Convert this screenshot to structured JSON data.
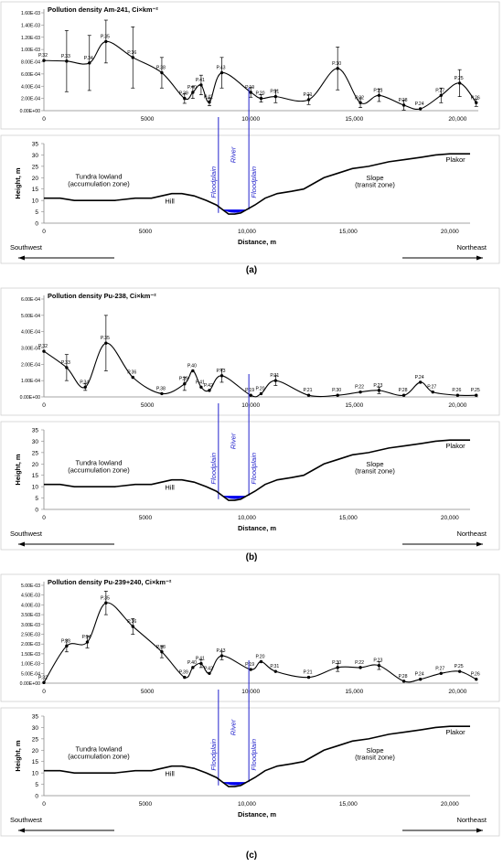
{
  "panels": [
    {
      "label": "(a)",
      "chart_data": {
        "type": "line",
        "title": "Pollution density Am-241, Ci×km⁻²",
        "xlabel": "",
        "ylabel": "",
        "xlim": [
          0,
          21000
        ],
        "ylim": [
          0,
          0.0016
        ],
        "yticks": [
          "0.00E+00",
          "2.00E-04",
          "4.00E-04",
          "6.00E-04",
          "8.00E-04",
          "1.00E-03",
          "1.20E-03",
          "1.40E-03",
          "1.60E-03"
        ],
        "xticks": [
          "0",
          "5000",
          "10,000",
          "15,000",
          "20,000"
        ],
        "series": [
          {
            "points": [
              {
                "label": "P.32",
                "x": 0,
                "y": 0.00082
              },
              {
                "label": "P.33",
                "x": 1100,
                "y": 0.00081,
                "err": 0.0005
              },
              {
                "label": "P.34",
                "x": 2200,
                "y": 0.00078,
                "err": 0.00045
              },
              {
                "label": "P.35",
                "x": 3000,
                "y": 0.00113,
                "err": 0.00035
              },
              {
                "label": "P.36",
                "x": 4300,
                "y": 0.00087,
                "err": 0.0005
              },
              {
                "label": "P.38",
                "x": 5700,
                "y": 0.00062,
                "err": 0.00025
              },
              {
                "label": "P.39",
                "x": 6800,
                "y": 0.0002,
                "err": 8e-05
              },
              {
                "label": "P.40",
                "x": 7200,
                "y": 0.0003,
                "err": 0.0001
              },
              {
                "label": "P.41",
                "x": 7600,
                "y": 0.00042,
                "err": 0.00016
              },
              {
                "label": "P.42",
                "x": 8000,
                "y": 0.00014,
                "err": 6e-05
              },
              {
                "label": "P.43",
                "x": 8600,
                "y": 0.00062,
                "err": 0.00025
              },
              {
                "label": "P.19",
                "x": 10000,
                "y": 0.0003,
                "err": 8e-05
              },
              {
                "label": "P.20",
                "x": 10500,
                "y": 0.0002,
                "err": 6e-05
              },
              {
                "label": "P.31",
                "x": 11200,
                "y": 0.00023,
                "err": 0.0001
              },
              {
                "label": "P.21",
                "x": 12800,
                "y": 0.00018,
                "err": 8e-05
              },
              {
                "label": "P.30",
                "x": 14200,
                "y": 0.00069,
                "err": 0.00035
              },
              {
                "label": "P.22",
                "x": 15300,
                "y": 0.00013,
                "err": 8e-05
              },
              {
                "label": "P.23",
                "x": 16200,
                "y": 0.00025,
                "err": 0.0001
              },
              {
                "label": "P.28",
                "x": 17400,
                "y": 9e-05,
                "err": 8e-05
              },
              {
                "label": "P.24",
                "x": 18200,
                "y": 3e-05
              },
              {
                "label": "P.27",
                "x": 19200,
                "y": 0.00025,
                "err": 0.00012
              },
              {
                "label": "P.25",
                "x": 20100,
                "y": 0.00045,
                "err": 0.00022
              },
              {
                "label": "P.26",
                "x": 20900,
                "y": 0.00013,
                "err": 6e-05
              }
            ]
          }
        ]
      }
    },
    {
      "label": "(b)",
      "chart_data": {
        "type": "line",
        "title": "Pollution density Pu-238, Ci×km⁻²",
        "xlabel": "",
        "ylabel": "",
        "xlim": [
          0,
          21000
        ],
        "ylim": [
          0,
          0.0006
        ],
        "yticks": [
          "0.00E+00",
          "1.00E-04",
          "2.00E-04",
          "3.00E-04",
          "4.00E-04",
          "5.00E-04",
          "6.00E-04"
        ],
        "xticks": [
          "0",
          "5000",
          "10,000",
          "15,000",
          "20,000"
        ],
        "series": [
          {
            "points": [
              {
                "label": "P.32",
                "x": 0,
                "y": 0.00028
              },
              {
                "label": "P.33",
                "x": 1100,
                "y": 0.00018,
                "err": 8e-05
              },
              {
                "label": "P.34",
                "x": 2000,
                "y": 6e-05,
                "err": 2e-05
              },
              {
                "label": "P.35",
                "x": 3000,
                "y": 0.00033,
                "err": 0.00017
              },
              {
                "label": "P.36",
                "x": 4300,
                "y": 0.00012
              },
              {
                "label": "P.38",
                "x": 5700,
                "y": 2e-05
              },
              {
                "label": "P.39",
                "x": 6800,
                "y": 8e-05,
                "err": 4e-05
              },
              {
                "label": "P.40",
                "x": 7200,
                "y": 0.00016
              },
              {
                "label": "P.41",
                "x": 7600,
                "y": 6e-05
              },
              {
                "label": "P.42",
                "x": 8000,
                "y": 4e-05
              },
              {
                "label": "P.43",
                "x": 8600,
                "y": 0.00013,
                "err": 4e-05
              },
              {
                "label": "P.19",
                "x": 10000,
                "y": 1e-05
              },
              {
                "label": "P.20",
                "x": 10500,
                "y": 2e-05
              },
              {
                "label": "P.31",
                "x": 11200,
                "y": 0.0001,
                "err": 3e-05
              },
              {
                "label": "P.21",
                "x": 12800,
                "y": 1e-05
              },
              {
                "label": "P.30",
                "x": 14200,
                "y": 1e-05
              },
              {
                "label": "P.22",
                "x": 15300,
                "y": 3e-05
              },
              {
                "label": "P.23",
                "x": 16200,
                "y": 4e-05,
                "err": 2e-05
              },
              {
                "label": "P.28",
                "x": 17400,
                "y": 1e-05
              },
              {
                "label": "P.24",
                "x": 18200,
                "y": 9e-05
              },
              {
                "label": "P.27",
                "x": 18800,
                "y": 3e-05
              },
              {
                "label": "P.26",
                "x": 20000,
                "y": 1e-05
              },
              {
                "label": "P.25",
                "x": 20900,
                "y": 1e-05
              }
            ]
          }
        ]
      }
    },
    {
      "label": "(c)",
      "chart_data": {
        "type": "line",
        "title": "Pollution density Pu-239+240, Ci×km⁻²",
        "xlabel": "",
        "ylabel": "",
        "xlim": [
          0,
          21000
        ],
        "ylim": [
          0,
          0.005
        ],
        "yticks": [
          "0.00E+00",
          "5.00E-04",
          "1.00E-03",
          "1.50E-03",
          "2.00E-03",
          "2.50E-03",
          "3.00E-03",
          "3.50E-03",
          "4.00E-03",
          "4.50E-03",
          "5.00E-03"
        ],
        "xticks": [
          "0",
          "5000",
          "10,000",
          "15,000",
          "20,000"
        ],
        "series": [
          {
            "points": [
              {
                "label": "P.32",
                "x": 0,
                "y": 3e-05
              },
              {
                "label": "P.33",
                "x": 1100,
                "y": 0.0019,
                "err": 0.0003
              },
              {
                "label": "P.34",
                "x": 2100,
                "y": 0.0021,
                "err": 0.0003
              },
              {
                "label": "P.35",
                "x": 3000,
                "y": 0.0041,
                "err": 0.0006
              },
              {
                "label": "P.36",
                "x": 4300,
                "y": 0.0029,
                "err": 0.0004
              },
              {
                "label": "P.38",
                "x": 5700,
                "y": 0.0016,
                "err": 0.0003
              },
              {
                "label": "P.39",
                "x": 6800,
                "y": 0.0003
              },
              {
                "label": "P.40",
                "x": 7200,
                "y": 0.0008
              },
              {
                "label": "P.41",
                "x": 7600,
                "y": 0.001,
                "err": 0.0002
              },
              {
                "label": "P.42",
                "x": 8000,
                "y": 0.0005
              },
              {
                "label": "P.43",
                "x": 8600,
                "y": 0.0014,
                "err": 0.0002
              },
              {
                "label": "P.19",
                "x": 10000,
                "y": 0.0007
              },
              {
                "label": "P.20",
                "x": 10500,
                "y": 0.0011
              },
              {
                "label": "P.31",
                "x": 11200,
                "y": 0.0006
              },
              {
                "label": "P.21",
                "x": 12800,
                "y": 0.0003
              },
              {
                "label": "P.30",
                "x": 14200,
                "y": 0.0008,
                "err": 0.0002
              },
              {
                "label": "P.22",
                "x": 15300,
                "y": 0.0008
              },
              {
                "label": "P.23",
                "x": 16200,
                "y": 0.0009,
                "err": 0.0002
              },
              {
                "label": "P.28",
                "x": 17400,
                "y": 0.0001
              },
              {
                "label": "P.24",
                "x": 18200,
                "y": 0.0002
              },
              {
                "label": "P.27",
                "x": 19200,
                "y": 0.0005
              },
              {
                "label": "P.25",
                "x": 20100,
                "y": 0.0006
              },
              {
                "label": "P.26",
                "x": 20900,
                "y": 0.0002
              }
            ]
          }
        ]
      }
    }
  ],
  "profile": {
    "ylabel": "Height, m",
    "xlabel": "Distance, m",
    "yticks": [
      "0",
      "5",
      "10",
      "15",
      "20",
      "25",
      "30",
      "35"
    ],
    "xticks": [
      "0",
      "5000",
      "10,000",
      "15,000",
      "20,000"
    ],
    "xlim": [
      0,
      21000
    ],
    "ylim": [
      0,
      35
    ],
    "terrain": [
      [
        0,
        11
      ],
      [
        800,
        11
      ],
      [
        1500,
        10
      ],
      [
        2500,
        10
      ],
      [
        3500,
        10
      ],
      [
        4500,
        11
      ],
      [
        5300,
        11
      ],
      [
        5800,
        12
      ],
      [
        6300,
        13
      ],
      [
        6800,
        13
      ],
      [
        7400,
        12
      ],
      [
        8000,
        10
      ],
      [
        8500,
        8
      ],
      [
        8800,
        6
      ],
      [
        9100,
        4
      ],
      [
        9400,
        4
      ],
      [
        9700,
        4.5
      ],
      [
        10000,
        6
      ],
      [
        10400,
        8
      ],
      [
        10900,
        11
      ],
      [
        11500,
        13
      ],
      [
        12200,
        14
      ],
      [
        12800,
        15
      ],
      [
        13200,
        17
      ],
      [
        13800,
        20
      ],
      [
        14500,
        22
      ],
      [
        15200,
        24
      ],
      [
        16000,
        25
      ],
      [
        17000,
        27
      ],
      [
        17800,
        28
      ],
      [
        18600,
        29
      ],
      [
        19300,
        30
      ],
      [
        20000,
        30.5
      ],
      [
        21000,
        30.5
      ]
    ],
    "water_color": "#0000ee",
    "river_left": 8600,
    "river_right": 10100,
    "annotations": {
      "tundra_line1": "Tundra lowland",
      "tundra_line2": "(accumulation zone)",
      "hill": "Hill",
      "slope_line1": "Slope",
      "slope_line2": "(transit zone)",
      "plakor": "Plakor",
      "floodplain_left": "Floodplain",
      "river": "River",
      "floodplain_right": "Floodplain",
      "southwest": "Southwest",
      "northeast": "Northeast"
    }
  },
  "colors": {
    "line": "#000000",
    "river_lines": "#2222cc",
    "river_text": "#2222cc"
  }
}
